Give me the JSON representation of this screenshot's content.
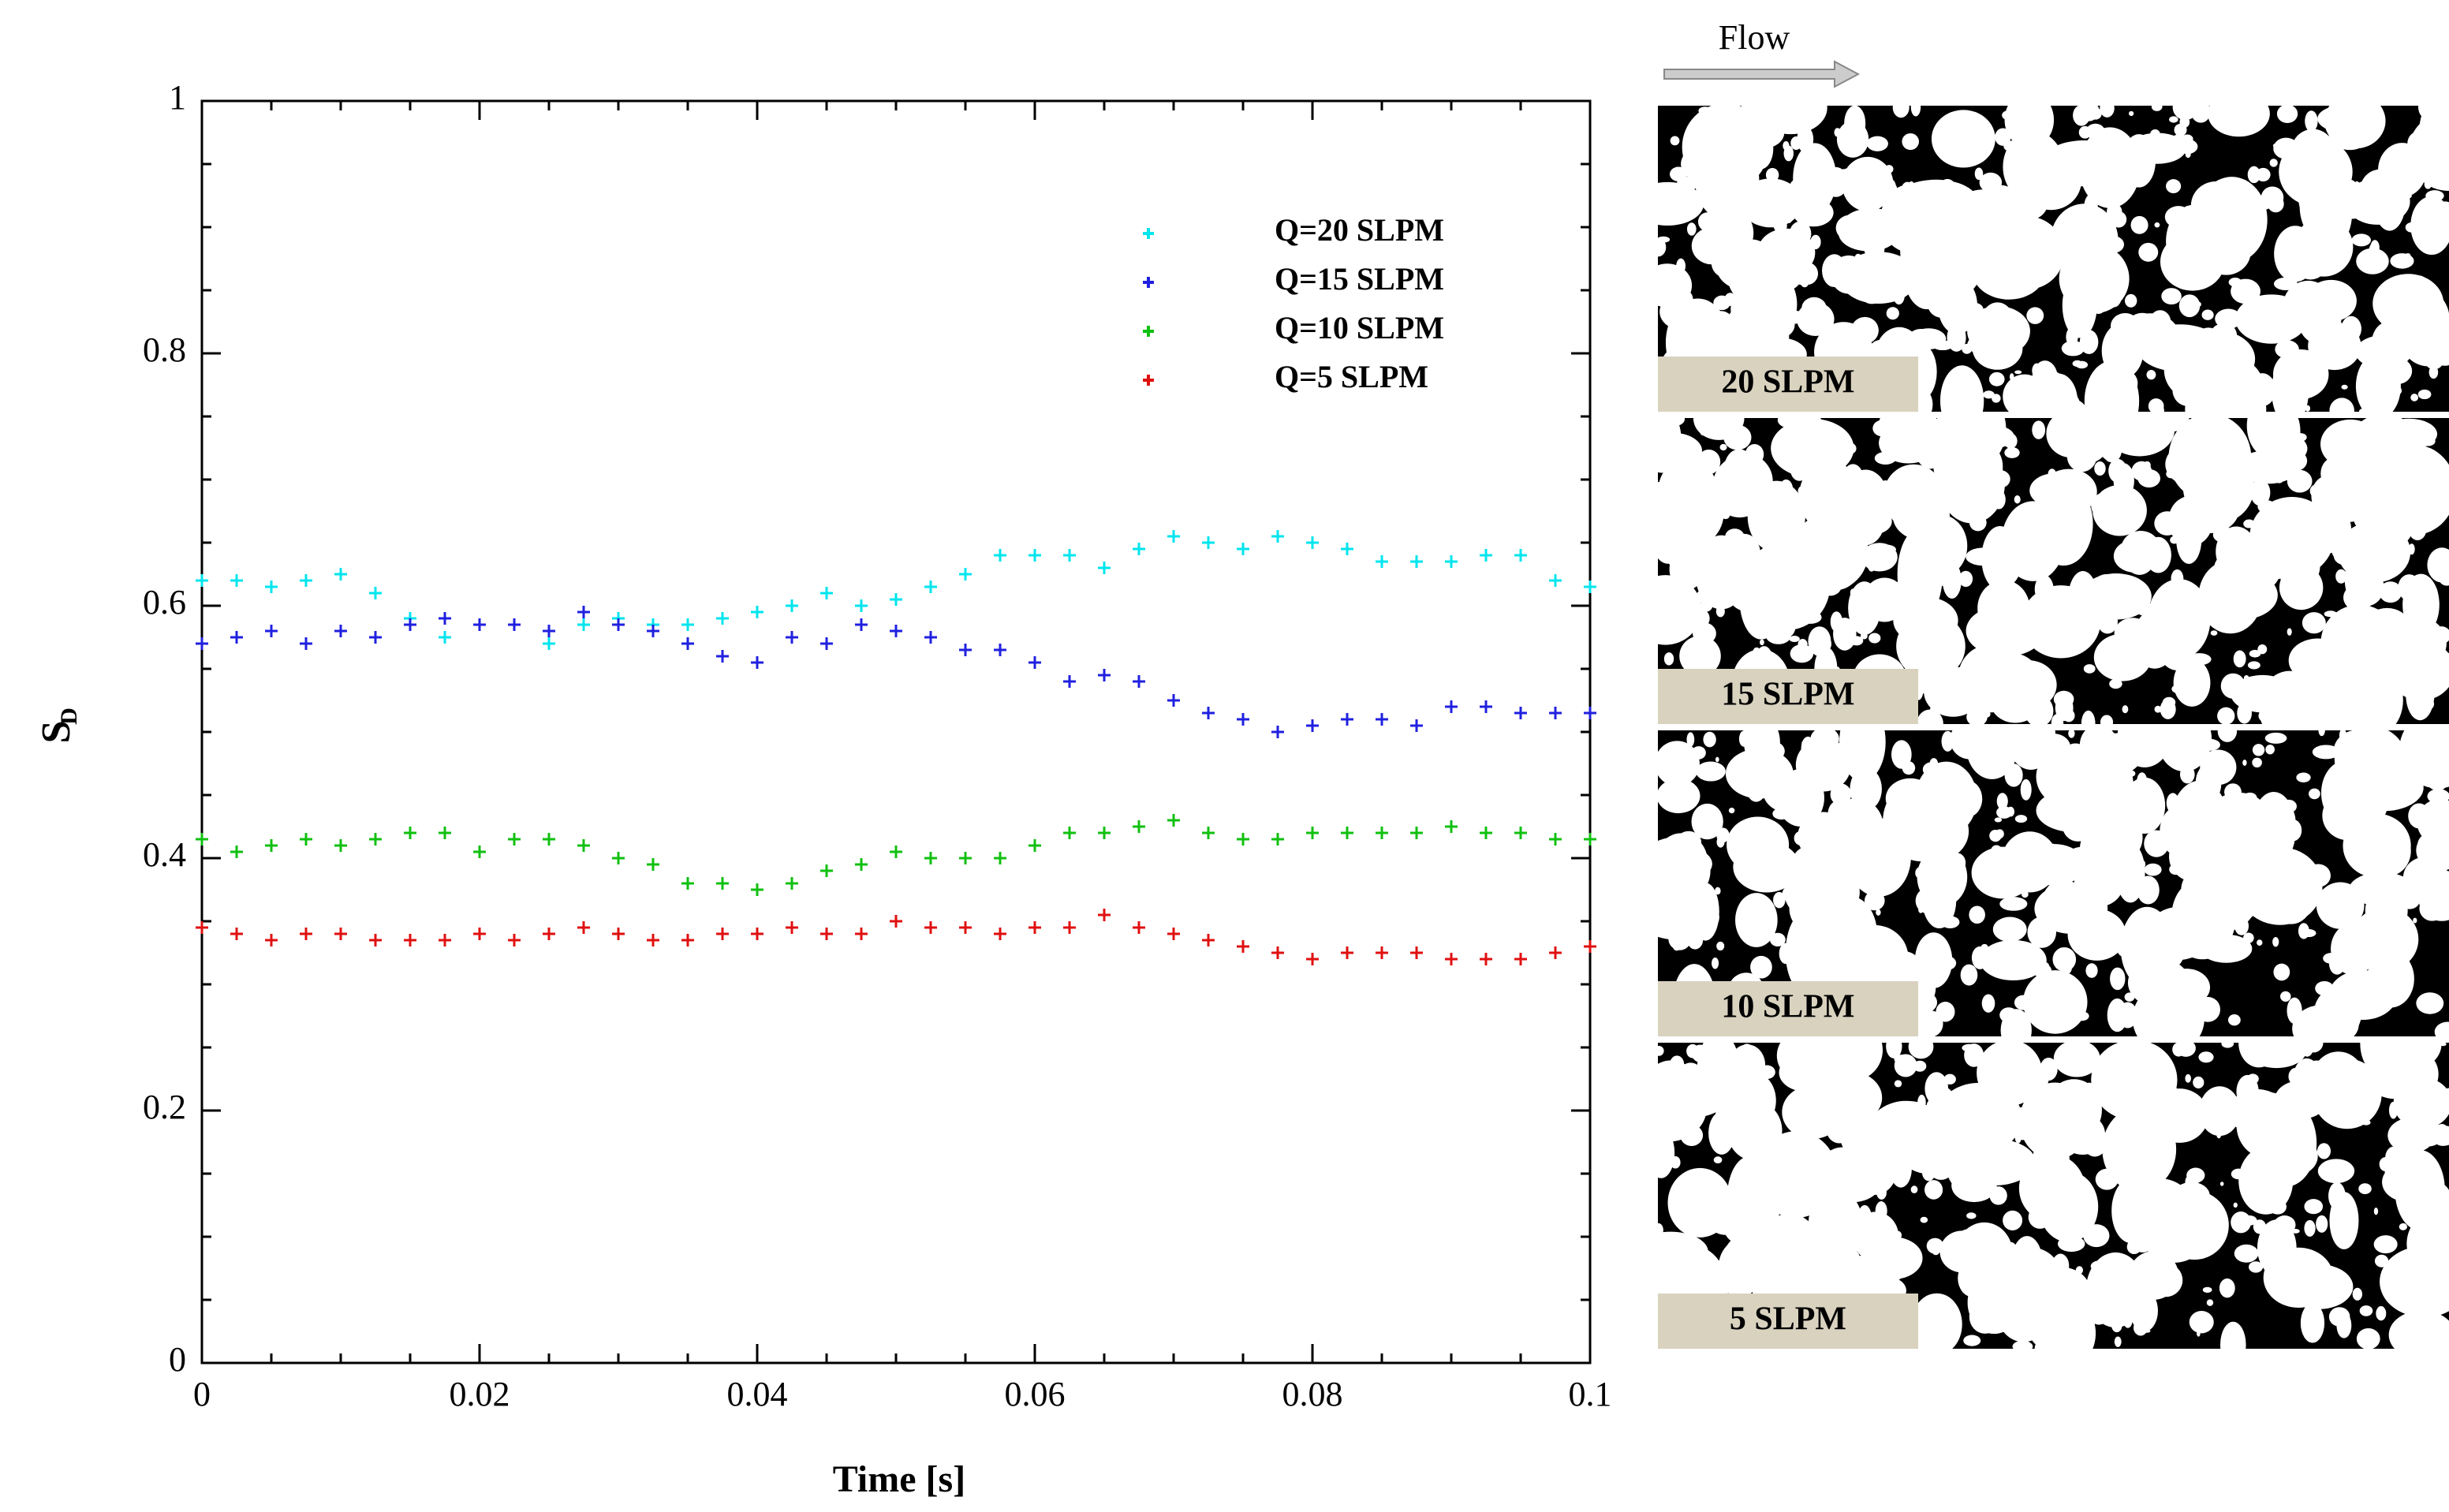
{
  "chart_data": {
    "type": "scatter",
    "xlabel": "Time [s]",
    "ylabel": "S",
    "ylabel_subscript": "D",
    "xlim": [
      0,
      0.1
    ],
    "ylim": [
      0,
      1
    ],
    "xticks": [
      0,
      0.02,
      0.04,
      0.06,
      0.08,
      0.1
    ],
    "yticks": [
      0,
      0.2,
      0.4,
      0.6,
      0.8,
      1
    ],
    "xminorticks": [
      0.005,
      0.01,
      0.015,
      0.025,
      0.03,
      0.035,
      0.045,
      0.05,
      0.055,
      0.065,
      0.07,
      0.075,
      0.085,
      0.09,
      0.095
    ],
    "yminorticks": [
      0.05,
      0.1,
      0.15,
      0.25,
      0.3,
      0.35,
      0.45,
      0.5,
      0.55,
      0.65,
      0.7,
      0.75,
      0.85,
      0.9,
      0.95
    ],
    "x": [
      0,
      0.0025,
      0.005,
      0.0075,
      0.01,
      0.0125,
      0.015,
      0.0175,
      0.02,
      0.0225,
      0.025,
      0.0275,
      0.03,
      0.0325,
      0.035,
      0.0375,
      0.04,
      0.0425,
      0.045,
      0.0475,
      0.05,
      0.0525,
      0.055,
      0.0575,
      0.06,
      0.0625,
      0.065,
      0.0675,
      0.07,
      0.0725,
      0.075,
      0.0775,
      0.08,
      0.0825,
      0.085,
      0.0875,
      0.09,
      0.0925,
      0.095,
      0.0975,
      0.1
    ],
    "series": [
      {
        "name": "Q=20 SLPM",
        "color": "#00e5ee",
        "values": [
          0.62,
          0.62,
          0.615,
          0.62,
          0.625,
          0.61,
          0.59,
          0.575,
          0.585,
          0.585,
          0.57,
          0.585,
          0.59,
          0.585,
          0.585,
          0.59,
          0.595,
          0.6,
          0.61,
          0.6,
          0.605,
          0.615,
          0.625,
          0.64,
          0.64,
          0.64,
          0.63,
          0.645,
          0.655,
          0.65,
          0.645,
          0.655,
          0.65,
          0.645,
          0.635,
          0.635,
          0.635,
          0.64,
          0.64,
          0.62,
          0.615
        ]
      },
      {
        "name": "Q=15 SLPM",
        "color": "#2020e0",
        "values": [
          0.57,
          0.575,
          0.58,
          0.57,
          0.58,
          0.575,
          0.585,
          0.59,
          0.585,
          0.585,
          0.58,
          0.595,
          0.585,
          0.58,
          0.57,
          0.56,
          0.555,
          0.575,
          0.57,
          0.585,
          0.58,
          0.575,
          0.565,
          0.565,
          0.555,
          0.54,
          0.545,
          0.54,
          0.525,
          0.515,
          0.51,
          0.5,
          0.505,
          0.51,
          0.51,
          0.505,
          0.52,
          0.52,
          0.515,
          0.515,
          0.515
        ]
      },
      {
        "name": "Q=10 SLPM",
        "color": "#10c010",
        "values": [
          0.415,
          0.405,
          0.41,
          0.415,
          0.41,
          0.415,
          0.42,
          0.42,
          0.405,
          0.415,
          0.415,
          0.41,
          0.4,
          0.395,
          0.38,
          0.38,
          0.375,
          0.38,
          0.39,
          0.395,
          0.405,
          0.4,
          0.4,
          0.4,
          0.41,
          0.42,
          0.42,
          0.425,
          0.43,
          0.42,
          0.415,
          0.415,
          0.42,
          0.42,
          0.42,
          0.42,
          0.425,
          0.42,
          0.42,
          0.415,
          0.415
        ]
      },
      {
        "name": "Q=5 SLPM",
        "color": "#e01010",
        "values": [
          0.345,
          0.34,
          0.335,
          0.34,
          0.34,
          0.335,
          0.335,
          0.335,
          0.34,
          0.335,
          0.34,
          0.345,
          0.34,
          0.335,
          0.335,
          0.34,
          0.34,
          0.345,
          0.34,
          0.34,
          0.35,
          0.345,
          0.345,
          0.34,
          0.345,
          0.345,
          0.355,
          0.345,
          0.34,
          0.335,
          0.33,
          0.325,
          0.32,
          0.325,
          0.325,
          0.325,
          0.32,
          0.32,
          0.32,
          0.325,
          0.33
        ]
      }
    ]
  },
  "images": {
    "flow_label": "Flow",
    "panels": [
      {
        "label": "20 SLPM"
      },
      {
        "label": "15 SLPM"
      },
      {
        "label": "10 SLPM"
      },
      {
        "label": "5 SLPM"
      }
    ]
  }
}
